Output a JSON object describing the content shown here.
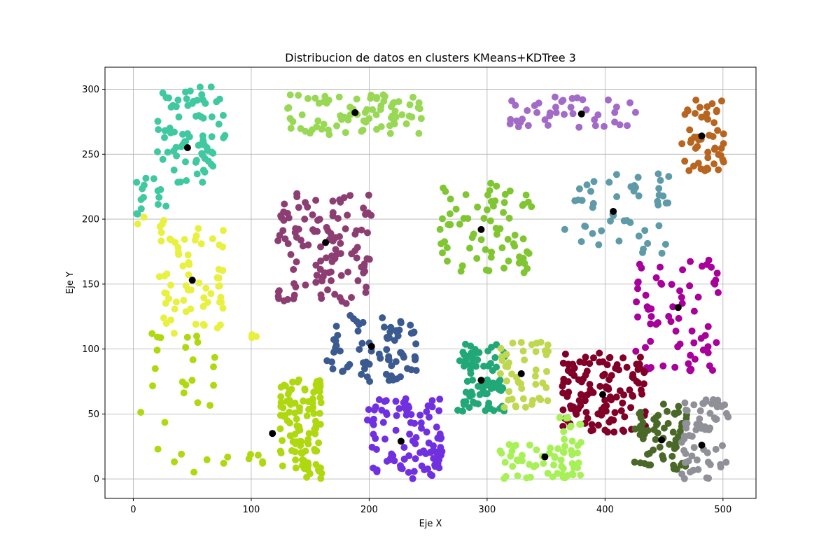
{
  "chart_data": {
    "type": "scatter",
    "title": "Distribucion de datos en clusters KMeans+KDTree 3",
    "xlabel": "Eje X",
    "ylabel": "Eje Y",
    "xlim": [
      -24,
      528
    ],
    "ylim": [
      -15,
      317
    ],
    "xticks": [
      0,
      100,
      200,
      300,
      400,
      500
    ],
    "yticks": [
      0,
      50,
      100,
      150,
      200,
      250,
      300
    ],
    "grid": true,
    "point_density": 0.42,
    "clusters": [
      {
        "color": "#40c8a0",
        "count": 190,
        "xrange": [
          20,
          78
        ],
        "yrange": [
          228,
          302
        ],
        "centroid": [
          46,
          255
        ]
      },
      {
        "color": "#40c8a0",
        "count": 35,
        "xrange": [
          0,
          30
        ],
        "yrange": [
          200,
          232
        ],
        "centroid": null
      },
      {
        "color": "#98d855",
        "count": 190,
        "xrange": [
          128,
          245
        ],
        "yrange": [
          265,
          296
        ],
        "centroid": [
          188,
          282
        ]
      },
      {
        "color": "#a36bc8",
        "count": 100,
        "xrange": [
          318,
          430
        ],
        "yrange": [
          270,
          295
        ],
        "centroid": [
          380,
          281
        ]
      },
      {
        "color": "#b8651f",
        "count": 120,
        "xrange": [
          465,
          502
        ],
        "yrange": [
          237,
          293
        ],
        "centroid": [
          482,
          264
        ]
      },
      {
        "color": "#5f9aa8",
        "count": 120,
        "xrange": [
          365,
          455
        ],
        "yrange": [
          173,
          235
        ],
        "centroid": [
          407,
          206
        ]
      },
      {
        "color": "#80c632",
        "count": 170,
        "xrange": [
          260,
          340
        ],
        "yrange": [
          158,
          230
        ],
        "centroid": [
          295,
          192
        ]
      },
      {
        "color": "#8c3e73",
        "count": 280,
        "xrange": [
          122,
          202
        ],
        "yrange": [
          135,
          222
        ],
        "centroid": [
          163,
          182
        ]
      },
      {
        "color": "#e8f040",
        "count": 150,
        "xrange": [
          22,
          78
        ],
        "yrange": [
          112,
          196
        ],
        "centroid": [
          50,
          153
        ]
      },
      {
        "color": "#e8f040",
        "count": 12,
        "xrange": [
          3,
          27
        ],
        "yrange": [
          190,
          202
        ],
        "centroid": null
      },
      {
        "color": "#e8f040",
        "count": 6,
        "xrange": [
          100,
          108
        ],
        "yrange": [
          106,
          148
        ],
        "centroid": null
      },
      {
        "color": "#a8009a",
        "count": 170,
        "xrange": [
          425,
          500
        ],
        "yrange": [
          83,
          170
        ],
        "centroid": [
          462,
          132
        ]
      },
      {
        "color": "#3a5a90",
        "count": 180,
        "xrange": [
          163,
          240
        ],
        "yrange": [
          75,
          126
        ],
        "centroid": [
          202,
          102
        ]
      },
      {
        "color": "#22a878",
        "count": 190,
        "xrange": [
          275,
          315
        ],
        "yrange": [
          52,
          104
        ],
        "centroid": [
          295,
          76
        ]
      },
      {
        "color": "#c0d850",
        "count": 110,
        "xrange": [
          310,
          353
        ],
        "yrange": [
          55,
          107
        ],
        "centroid": [
          329,
          81
        ]
      },
      {
        "color": "#800028",
        "count": 300,
        "xrange": [
          363,
          435
        ],
        "yrange": [
          35,
          97
        ],
        "centroid": [
          398,
          65
        ]
      },
      {
        "color": "#4a6828",
        "count": 140,
        "xrange": [
          425,
          470
        ],
        "yrange": [
          6,
          58
        ],
        "centroid": [
          448,
          30
        ]
      },
      {
        "color": "#909098",
        "count": 150,
        "xrange": [
          465,
          505
        ],
        "yrange": [
          0,
          61
        ],
        "centroid": [
          482,
          26
        ]
      },
      {
        "color": "#a8f058",
        "count": 130,
        "xrange": [
          310,
          380
        ],
        "yrange": [
          0,
          27
        ],
        "centroid": [
          349,
          17
        ]
      },
      {
        "color": "#a8f058",
        "count": 25,
        "xrange": [
          360,
          380
        ],
        "yrange": [
          28,
          52
        ],
        "centroid": null
      },
      {
        "color": "#7030e0",
        "count": 230,
        "xrange": [
          198,
          262
        ],
        "yrange": [
          0,
          62
        ],
        "centroid": [
          227,
          29
        ]
      },
      {
        "color": "#b0d810",
        "count": 250,
        "xrange": [
          124,
          160
        ],
        "yrange": [
          0,
          78
        ],
        "centroid": [
          118,
          35
        ]
      },
      {
        "color": "#b0d810",
        "count": 12,
        "xrange": [
          98,
          110
        ],
        "yrange": [
          12,
          20
        ],
        "centroid": null
      },
      {
        "color": "#b0d810",
        "count": 70,
        "xrange": [
          0,
          80
        ],
        "yrange": [
          0,
          113
        ],
        "centroid": null
      }
    ]
  }
}
